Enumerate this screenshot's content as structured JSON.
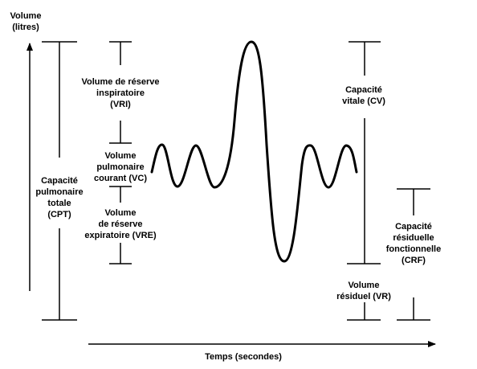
{
  "axes": {
    "y_label": [
      "Volume",
      "(litres)"
    ],
    "x_label": "Temps (secondes)"
  },
  "labels": {
    "vri": [
      "Volume de réserve",
      "inspiratoire",
      "(VRI)"
    ],
    "vc": [
      "Volume",
      "pulmonaire",
      "courant  (VC)"
    ],
    "vre": [
      "Volume",
      "de réserve",
      "expiratoire (VRE)"
    ],
    "cpt": [
      "Capacité",
      "pulmonaire",
      "totale",
      "(CPT)"
    ],
    "cv": [
      "Capacité",
      "vitale (CV)"
    ],
    "crf": [
      "Capacité",
      "résiduelle",
      "fonctionnelle",
      "(CRF)"
    ],
    "vr": [
      "Volume",
      "résiduel (VR)"
    ]
  },
  "colors": {
    "ink": "#000000",
    "background": "#ffffff"
  }
}
